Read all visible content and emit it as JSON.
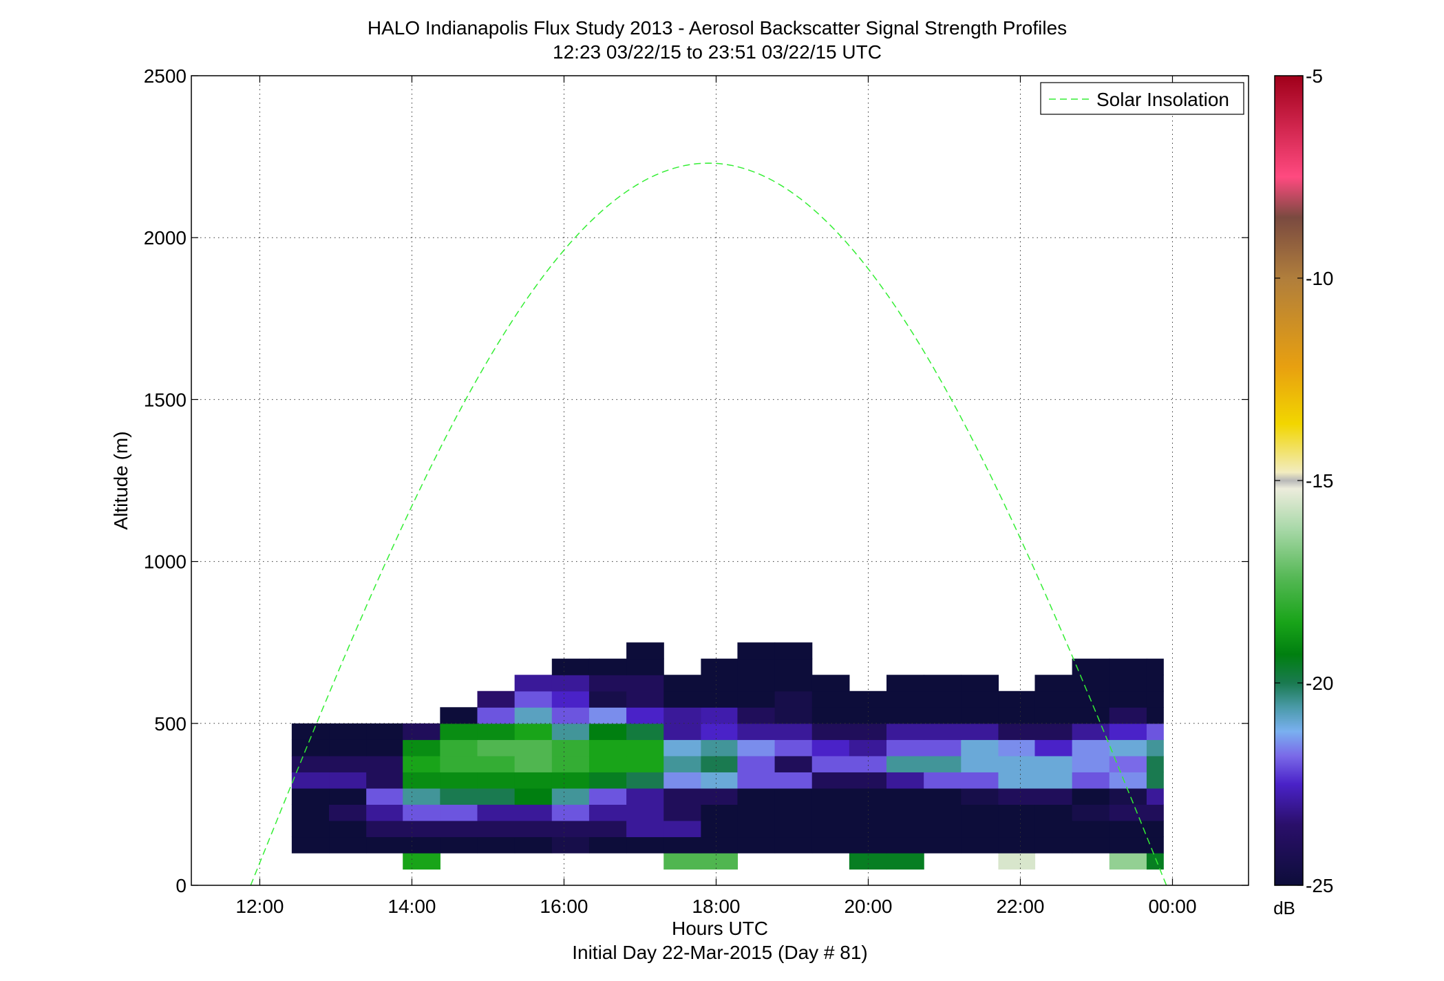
{
  "chart_data": {
    "type": "heatmap",
    "title": "HALO Indianapolis Flux Study 2013 - Aerosol Backscatter Signal Strength Profiles",
    "subtitle": "12:23 03/22/15 to 23:51 03/22/15  UTC",
    "xlabel": "Hours UTC",
    "x_caption": "Initial Day 22-Mar-2015 (Day # 81)",
    "ylabel": "Altitude (m)",
    "xlim": [
      11.1,
      25.0
    ],
    "ylim": [
      0,
      2500
    ],
    "x_ticks": [
      12,
      14,
      16,
      18,
      20,
      22,
      24
    ],
    "x_tick_labels": [
      "12:00",
      "14:00",
      "16:00",
      "18:00",
      "20:00",
      "22:00",
      "00:00"
    ],
    "y_ticks": [
      0,
      500,
      1000,
      1500,
      2000,
      2500
    ],
    "y_tick_labels": [
      "0",
      "500",
      "1000",
      "1500",
      "2000",
      "2500"
    ],
    "grid": true,
    "colorbar": {
      "range": [
        -25,
        -5
      ],
      "ticks": [
        -5,
        -10,
        -15,
        -20,
        -25
      ],
      "tick_labels": [
        "-5",
        "-10",
        "-15",
        "-20",
        "-25"
      ],
      "unit": "dB",
      "colormap": [
        [
          -25,
          "#0d0d3a"
        ],
        [
          -23.5,
          "#2a0f6a"
        ],
        [
          -22.5,
          "#4a22c8"
        ],
        [
          -21.8,
          "#7a6ae8"
        ],
        [
          -21.2,
          "#7ab0f0"
        ],
        [
          -20.6,
          "#4a9aa8"
        ],
        [
          -20.0,
          "#1a7a50"
        ],
        [
          -19.3,
          "#007f10"
        ],
        [
          -18.5,
          "#19a419"
        ],
        [
          -17.4,
          "#55b855"
        ],
        [
          -16.2,
          "#a8d8a8"
        ],
        [
          -15.2,
          "#ececdc"
        ],
        [
          -15.0,
          "#b8b8b8"
        ],
        [
          -14.8,
          "#f2ecc0"
        ],
        [
          -13.6,
          "#f2d600"
        ],
        [
          -12.2,
          "#e8a010"
        ],
        [
          -10.0,
          "#b07e3c"
        ],
        [
          -8.5,
          "#7a4a40"
        ],
        [
          -7.5,
          "#ff4a80"
        ],
        [
          -5.0,
          "#a0001a"
        ]
      ]
    },
    "legend": {
      "position": "top-right",
      "entries": [
        "Solar Insolation"
      ]
    },
    "solar_curve": {
      "name": "Solar Insolation",
      "x_start": 11.88,
      "x_end": 23.92,
      "peak": 2230,
      "color": "#33ee33"
    },
    "heatmap": {
      "x_edges": [
        12.42,
        12.91,
        13.4,
        13.88,
        14.37,
        14.86,
        15.35,
        15.84,
        16.33,
        16.82,
        17.31,
        17.8,
        18.28,
        18.77,
        19.26,
        19.75,
        20.24,
        20.73,
        21.22,
        21.71,
        22.19,
        22.68,
        23.17,
        23.66,
        23.88
      ],
      "y_edges": [
        50,
        100,
        150,
        200,
        250,
        300,
        350,
        400,
        450,
        500,
        550,
        600,
        650,
        700,
        750
      ],
      "values": [
        [
          null,
          null,
          null,
          -18.5,
          null,
          null,
          null,
          null,
          null,
          null,
          -17.5,
          -17.5,
          null,
          null,
          null,
          -19.5,
          -19.5,
          null,
          null,
          -15.5,
          null,
          null,
          -16.5,
          -19.5
        ],
        [
          -25,
          -25,
          -25,
          -25,
          -25,
          -25,
          -25,
          -24.5,
          -25,
          -25,
          -25,
          -25,
          -25,
          -25,
          -25,
          -25,
          -25,
          -25,
          -25,
          -25,
          -25,
          -25,
          -25,
          -25
        ],
        [
          -25,
          -25,
          -24,
          -24,
          -24,
          -24,
          -24,
          -24,
          -24,
          -23,
          -23,
          -25,
          -25,
          -25,
          -25,
          -25,
          -25,
          -25,
          -25,
          -25,
          -25,
          -25,
          -25,
          -25
        ],
        [
          -25,
          -24,
          -23,
          -22,
          -22,
          -23,
          -23,
          -22,
          -23,
          -23,
          -24,
          -25,
          -25,
          -25,
          -25,
          -25,
          -25,
          -25,
          -25,
          -25,
          -25,
          -24.5,
          -24,
          -24
        ],
        [
          -25,
          -25,
          -22,
          -20.5,
          -20,
          -20,
          -19.3,
          -20.5,
          -22,
          -23,
          -24,
          -24,
          -25,
          -25,
          -25,
          -25,
          -25,
          -25,
          -24.5,
          -24,
          -24,
          -25,
          -24.5,
          -23
        ],
        [
          -23,
          -23,
          -24,
          -19,
          -19,
          -19,
          -19,
          -19,
          -19.5,
          -20,
          -21.5,
          -21,
          -22,
          -22,
          -24,
          -24,
          -23,
          -22,
          -22,
          -21,
          -21,
          -22,
          -21.5,
          -20
        ],
        [
          -24,
          -24,
          -24,
          -18.5,
          -18,
          -18,
          -17.5,
          -18,
          -18.5,
          -18.5,
          -20.5,
          -20,
          -22,
          -24,
          -22,
          -22,
          -20.5,
          -20.5,
          -21,
          -21,
          -21,
          -21.5,
          -21.8,
          -20
        ],
        [
          -25,
          -25,
          -25,
          -19,
          -18,
          -17.5,
          -17.5,
          -18,
          -18.5,
          -18.5,
          -21,
          -20.5,
          -21.5,
          -22,
          -22.5,
          -23,
          -22,
          -22,
          -21,
          -21.5,
          -22.5,
          -21.5,
          -21,
          -20.5
        ],
        [
          -25,
          -25,
          -25,
          -24,
          -19,
          -19,
          -18.5,
          -20.5,
          -19.3,
          -19.8,
          -23,
          -22.5,
          -23,
          -23,
          -24,
          -24,
          -23,
          -23,
          -23,
          -24,
          -24,
          -23,
          -22.5,
          -22
        ],
        [
          null,
          null,
          null,
          null,
          -25,
          -22,
          -20.8,
          -22,
          -21.5,
          -22.5,
          -23,
          -22.8,
          -24,
          -24.5,
          -25,
          -25,
          -25,
          -25,
          -25,
          -25,
          -25,
          -25,
          -24,
          -25
        ],
        [
          null,
          null,
          null,
          null,
          null,
          -23.5,
          -22,
          -22.5,
          -24.5,
          -24,
          -25,
          -25,
          -25,
          -24.5,
          -25,
          -25,
          -25,
          -25,
          -25,
          -25,
          -25,
          -25,
          -25,
          -25
        ],
        [
          null,
          null,
          null,
          null,
          null,
          null,
          -23,
          -23,
          -24,
          -24,
          -25,
          -25,
          -25,
          -25,
          -25,
          null,
          -25,
          -25,
          -25,
          null,
          -25,
          -25,
          -25,
          -25
        ],
        [
          null,
          null,
          null,
          null,
          null,
          null,
          null,
          -25,
          -25,
          -25,
          null,
          -25,
          -25,
          -25,
          null,
          null,
          null,
          null,
          null,
          null,
          null,
          -25,
          -25,
          -25
        ],
        [
          null,
          null,
          null,
          null,
          null,
          null,
          null,
          null,
          null,
          -25,
          null,
          null,
          -25,
          -25,
          null,
          null,
          null,
          null,
          null,
          null,
          null,
          null,
          null,
          null
        ]
      ]
    }
  }
}
